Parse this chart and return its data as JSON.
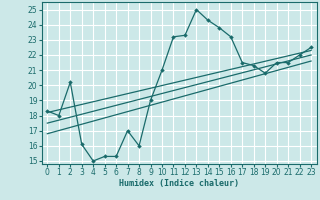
{
  "xlabel": "Humidex (Indice chaleur)",
  "bg_color": "#cce8e8",
  "grid_color": "#ffffff",
  "line_color": "#1a6b6b",
  "xlim": [
    -0.5,
    23.5
  ],
  "ylim": [
    14.8,
    25.5
  ],
  "xticks": [
    0,
    1,
    2,
    3,
    4,
    5,
    6,
    7,
    8,
    9,
    10,
    11,
    12,
    13,
    14,
    15,
    16,
    17,
    18,
    19,
    20,
    21,
    22,
    23
  ],
  "yticks": [
    15,
    16,
    17,
    18,
    19,
    20,
    21,
    22,
    23,
    24,
    25
  ],
  "line1_x": [
    0,
    1,
    2,
    3,
    4,
    5,
    6,
    7,
    8,
    9,
    10,
    11,
    12,
    13,
    14,
    15,
    16,
    17,
    18,
    19,
    20,
    21,
    22,
    23
  ],
  "line1_y": [
    18.3,
    18.0,
    20.2,
    16.1,
    15.0,
    15.3,
    15.3,
    17.0,
    16.0,
    19.0,
    21.0,
    23.2,
    23.3,
    25.0,
    24.3,
    23.8,
    23.2,
    21.5,
    21.3,
    20.8,
    21.5,
    21.5,
    22.0,
    22.5
  ],
  "line2_x": [
    0,
    23
  ],
  "line2_y": [
    18.2,
    22.3
  ],
  "line3_x": [
    0,
    23
  ],
  "line3_y": [
    17.5,
    22.0
  ],
  "line4_x": [
    0,
    23
  ],
  "line4_y": [
    16.8,
    21.6
  ]
}
